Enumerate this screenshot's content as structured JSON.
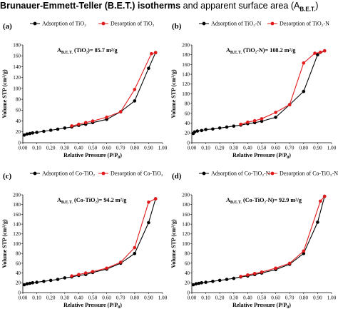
{
  "figure_title": {
    "main": "Brunauer-Emmett-Teller (B.E.T.) isotherms",
    "rest": " and apparent surface area (A",
    "sub": "B.E.T.",
    "end": ")"
  },
  "colors": {
    "adsorption": "#000000",
    "desorption": "#e31a1c"
  },
  "chart_data": [
    {
      "type": "line",
      "panel_label": "(a)",
      "xlabel": "Relative Pressure (P/P0)",
      "ylabel": "Volume STP (cm³/g)",
      "xlim": [
        0,
        1
      ],
      "ylim": [
        0,
        180
      ],
      "x_ticks": [
        "0.00",
        "0.10",
        "0.20",
        "0.30",
        "0.40",
        "0.50",
        "0.60",
        "0.70",
        "0.80",
        "0.90",
        "1.00"
      ],
      "y_ticks": [
        "0",
        "20",
        "40",
        "60",
        "80",
        "100",
        "120",
        "140",
        "160",
        "180"
      ],
      "legend": [
        "Adsorption of TiO₂",
        "Desorption of TiO₂"
      ],
      "annotation": "A_B.E.T. (TiO₂)= 85.7 m²/g",
      "annotation_pos": "top-left",
      "series": [
        {
          "name": "Adsorption of TiO₂",
          "x": [
            0.01,
            0.03,
            0.05,
            0.07,
            0.1,
            0.15,
            0.2,
            0.25,
            0.3,
            0.35,
            0.4,
            0.45,
            0.5,
            0.6,
            0.7,
            0.8,
            0.9,
            0.95
          ],
          "y": [
            14,
            16,
            17,
            18,
            19,
            21,
            23,
            25,
            27,
            29,
            32,
            34,
            37,
            43,
            57,
            77,
            137,
            166
          ]
        },
        {
          "name": "Desorption of TiO₂",
          "x": [
            0.95,
            0.92,
            0.8,
            0.7,
            0.6,
            0.5,
            0.45,
            0.4,
            0.35
          ],
          "y": [
            166,
            164,
            98,
            57,
            47,
            40,
            37,
            34,
            31
          ]
        }
      ]
    },
    {
      "type": "line",
      "panel_label": "(b)",
      "xlabel": "Relative Pressure (P/P0)",
      "ylabel": "Volume STP (cm³/g)",
      "xlim": [
        0,
        1
      ],
      "ylim": [
        0,
        200
      ],
      "x_ticks": [
        "0.00",
        "0.10",
        "0.20",
        "0.30",
        "0.40",
        "0.50",
        "0.60",
        "0.70",
        "0.80",
        "0.90",
        "1.00"
      ],
      "y_ticks": [
        "0",
        "20",
        "40",
        "60",
        "80",
        "100",
        "120",
        "140",
        "160",
        "180",
        "200"
      ],
      "legend": [
        "Adsorption of TiO₂-N",
        "Desorption of TiO₂-N"
      ],
      "annotation": "A_B.E.T. (TiO₂-N)= 108.2 m²/g",
      "annotation_pos": "top-left",
      "series": [
        {
          "name": "Adsorption of TiO₂-N",
          "x": [
            0.01,
            0.02,
            0.04,
            0.07,
            0.1,
            0.15,
            0.2,
            0.25,
            0.3,
            0.35,
            0.4,
            0.45,
            0.5,
            0.6,
            0.7,
            0.8,
            0.9,
            0.95
          ],
          "y": [
            19,
            22,
            24,
            25,
            27,
            28,
            30,
            32,
            34,
            36,
            39,
            41,
            44,
            52,
            78,
            105,
            180,
            188
          ]
        },
        {
          "name": "Desorption of TiO₂-N",
          "x": [
            0.95,
            0.92,
            0.88,
            0.8,
            0.7,
            0.6,
            0.5,
            0.45,
            0.4,
            0.35
          ],
          "y": [
            188,
            185,
            183,
            163,
            78,
            62,
            49,
            45,
            42,
            38
          ]
        }
      ]
    },
    {
      "type": "line",
      "panel_label": "(c)",
      "xlabel": "Relative Pressure (P/P0)",
      "ylabel": "Volume STP (cm³/g)",
      "xlim": [
        0,
        1
      ],
      "ylim": [
        0,
        200
      ],
      "x_ticks": [
        "0.00",
        "0.10",
        "0.20",
        "0.30",
        "0.40",
        "0.50",
        "0.60",
        "0.70",
        "0.80",
        "0.90",
        "1.00"
      ],
      "y_ticks": [
        "0",
        "20",
        "40",
        "60",
        "80",
        "100",
        "120",
        "140",
        "160",
        "180",
        "200"
      ],
      "legend": [
        "Adsorption of Co-TiO₂",
        "Desorption of Co-TiO₂"
      ],
      "annotation": "A_B.E.T. (Co-TiO₂)= 94.2 m²/g",
      "annotation_pos": "top-left",
      "series": [
        {
          "name": "Adsorption of Co-TiO₂",
          "x": [
            0.01,
            0.03,
            0.05,
            0.07,
            0.1,
            0.15,
            0.2,
            0.25,
            0.3,
            0.35,
            0.4,
            0.45,
            0.5,
            0.6,
            0.7,
            0.8,
            0.9,
            0.95
          ],
          "y": [
            16,
            18,
            19,
            20,
            21,
            23,
            25,
            27,
            30,
            32,
            35,
            37,
            41,
            48,
            60,
            80,
            143,
            192
          ]
        },
        {
          "name": "Desorption of Co-TiO₂",
          "x": [
            0.95,
            0.9,
            0.8,
            0.7,
            0.6,
            0.5,
            0.45,
            0.4,
            0.35
          ],
          "y": [
            192,
            185,
            92,
            62,
            50,
            43,
            40,
            37,
            34
          ]
        }
      ]
    },
    {
      "type": "line",
      "panel_label": "(d)",
      "xlabel": "Relative Pressure (P/P0)",
      "ylabel": "Volume STP (cm³/g)",
      "xlim": [
        0,
        1
      ],
      "ylim": [
        0,
        200
      ],
      "x_ticks": [
        "0.00",
        "0.10",
        "0.20",
        "0.30",
        "0.40",
        "0.50",
        "0.60",
        "0.70",
        "0.80",
        "0.90",
        "1.00"
      ],
      "y_ticks": [
        "0",
        "20",
        "40",
        "60",
        "80",
        "100",
        "120",
        "140",
        "160",
        "180",
        "200"
      ],
      "legend": [
        "Adsorption of Co-TiO₂-N",
        "Desorption of Co-TiO₂-N"
      ],
      "annotation": "A_B.E.T. (Co-TiO₂-N)= 92.9 m²/g",
      "annotation_pos": "top-left",
      "series": [
        {
          "name": "Adsorption of Co-TiO₂-N",
          "x": [
            0.01,
            0.03,
            0.05,
            0.07,
            0.1,
            0.15,
            0.2,
            0.25,
            0.3,
            0.35,
            0.4,
            0.45,
            0.5,
            0.6,
            0.7,
            0.8,
            0.9,
            0.95
          ],
          "y": [
            16,
            18,
            19,
            20,
            21,
            23,
            25,
            27,
            29,
            32,
            34,
            37,
            40,
            47,
            58,
            80,
            144,
            197
          ]
        },
        {
          "name": "Desorption of Co-TiO₂-N",
          "x": [
            0.95,
            0.92,
            0.8,
            0.7,
            0.6,
            0.5,
            0.45,
            0.4,
            0.35
          ],
          "y": [
            197,
            187,
            85,
            60,
            50,
            42,
            39,
            36,
            33
          ]
        }
      ]
    }
  ]
}
